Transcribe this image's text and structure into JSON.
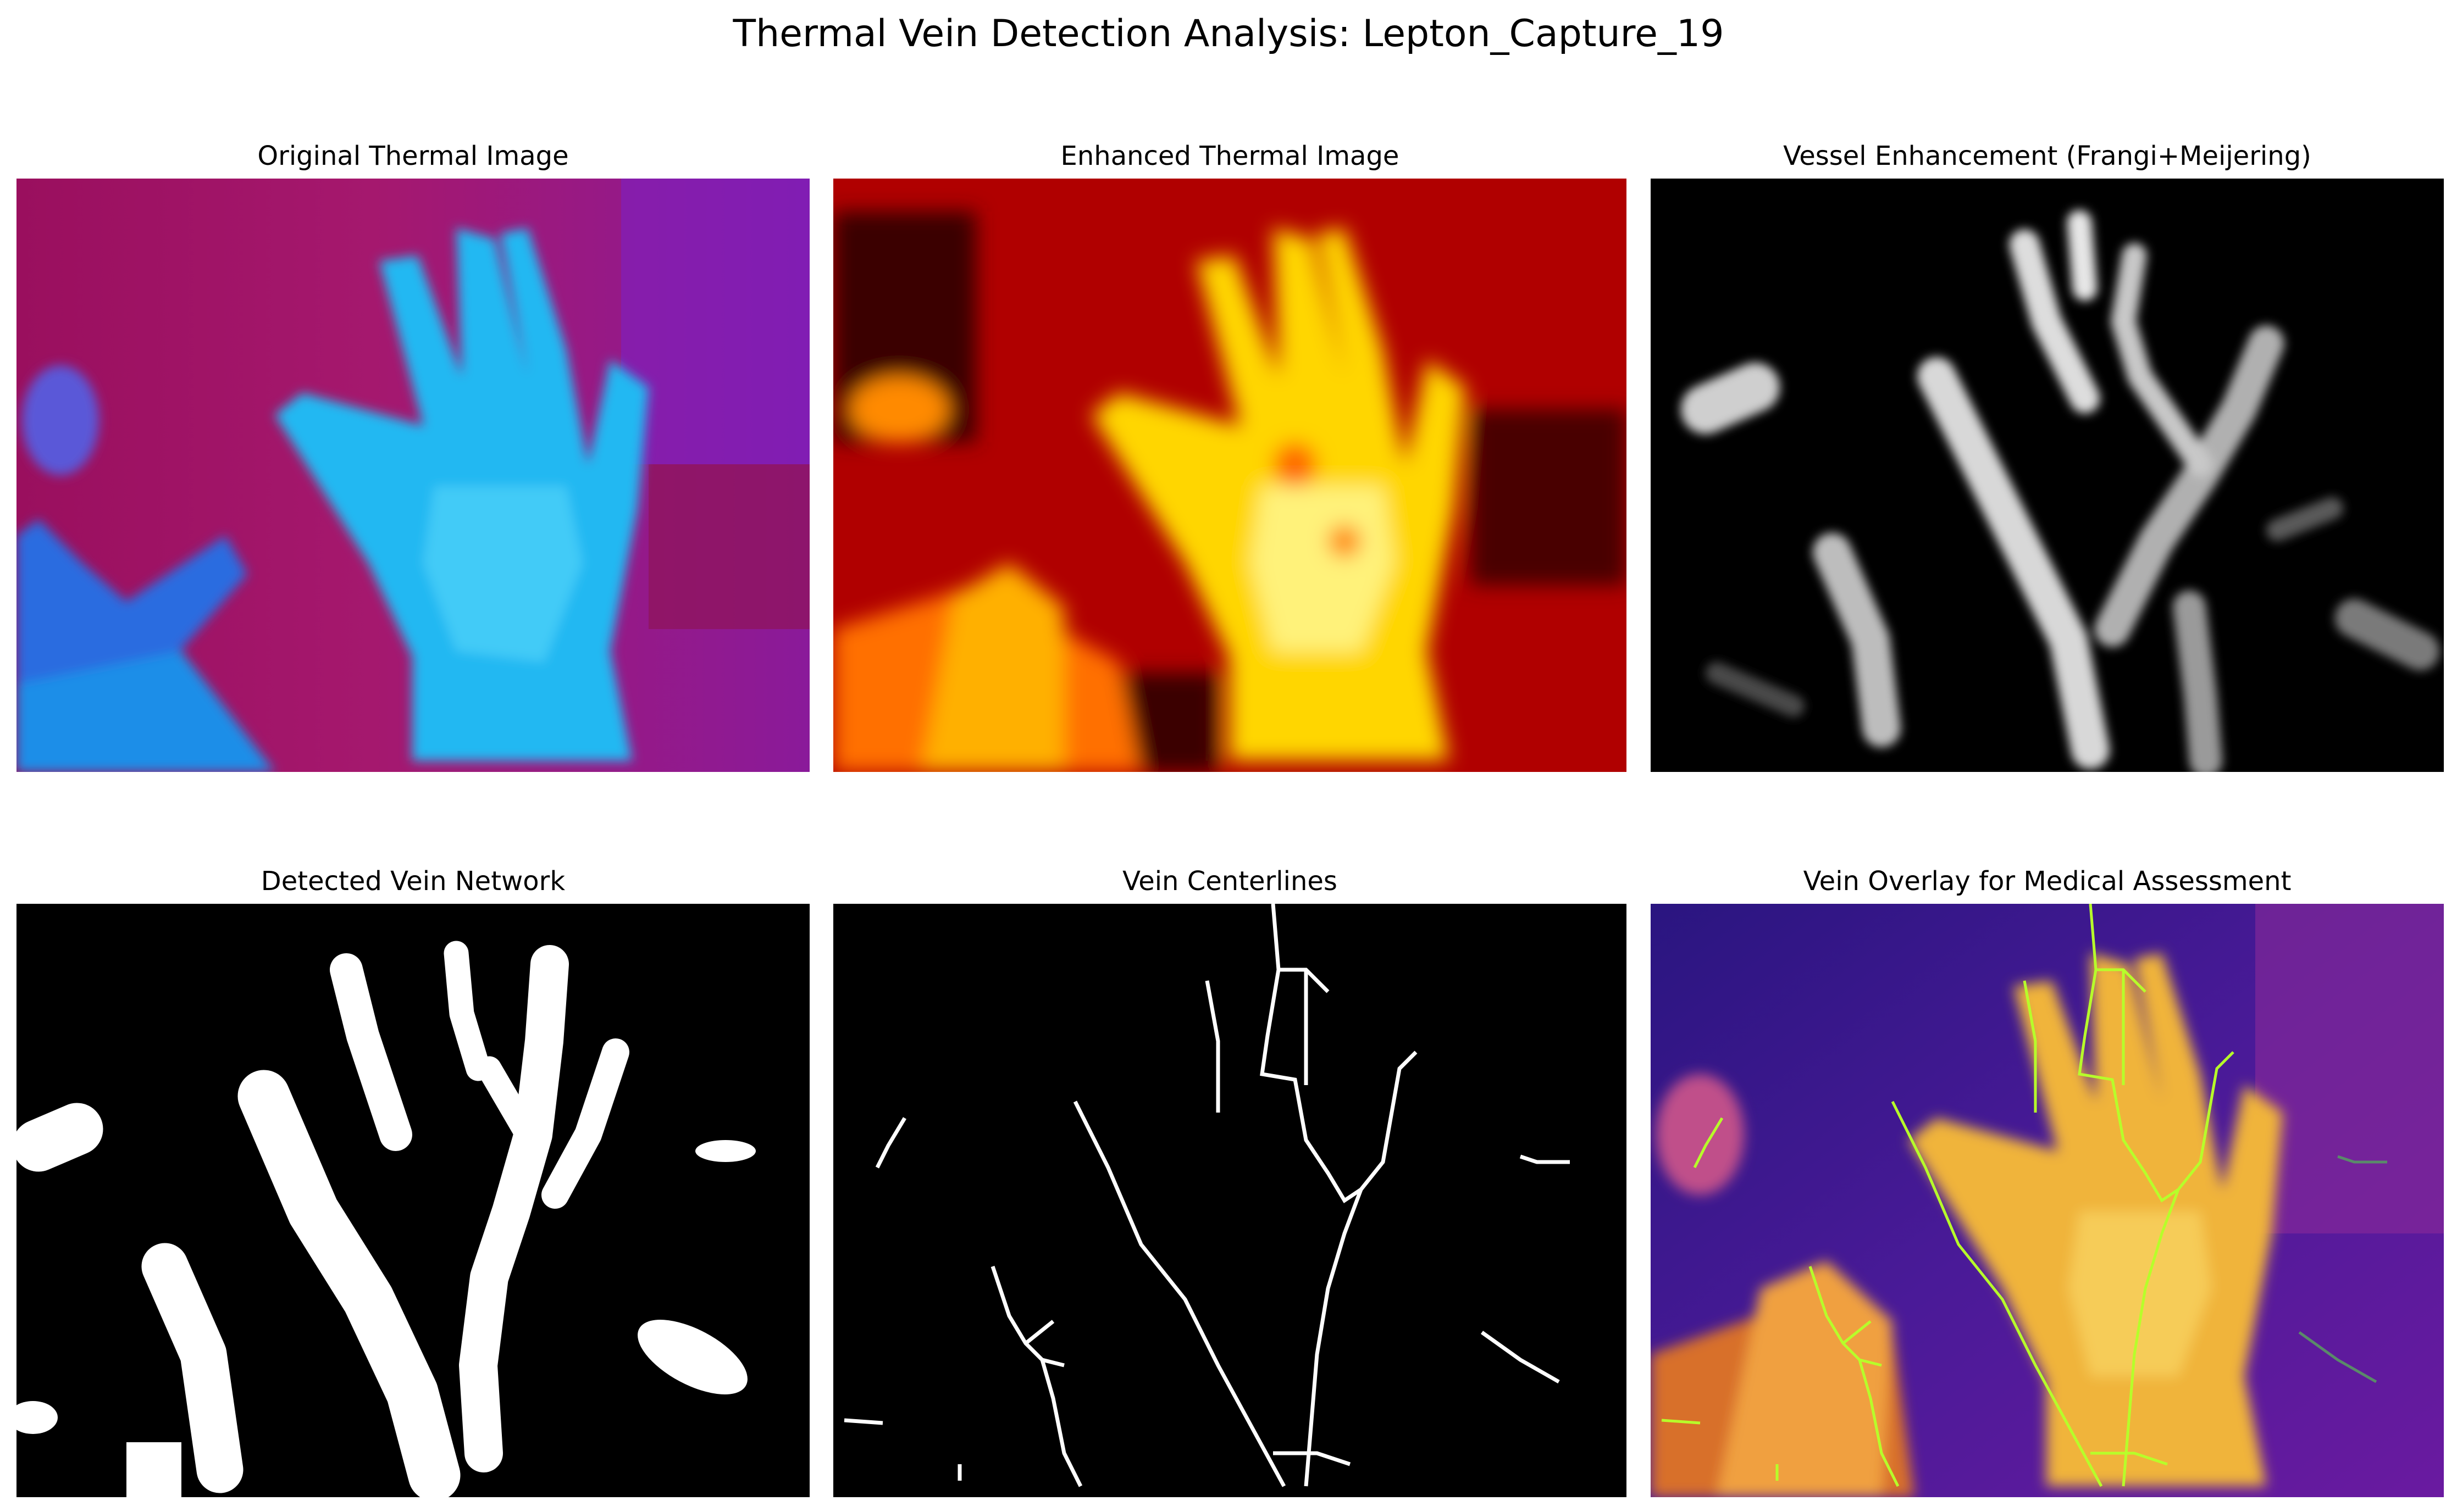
{
  "figure": {
    "title": "Thermal Vein Detection Analysis: Lepton_Capture_19"
  },
  "panels": [
    {
      "title": "Original Thermal Image",
      "colormap": "cool-on-magenta",
      "background": "#a51470",
      "subject": "#19b4f0"
    },
    {
      "title": "Enhanced Thermal Image",
      "colormap": "hot",
      "background": "#b30000",
      "subject": "#ffff60"
    },
    {
      "title": "Vessel Enhancement (Frangi+Meijering)",
      "colormap": "gray",
      "background": "#000000",
      "subject": "#e6e6e6"
    },
    {
      "title": "Detected Vein Network",
      "colormap": "binary",
      "background": "#000000",
      "subject": "#ffffff"
    },
    {
      "title": "Vein Centerlines",
      "colormap": "binary",
      "background": "#000000",
      "subject": "#ffffff"
    },
    {
      "title": "Vein Overlay for Medical Assessment",
      "colormap": "plasma",
      "background": "#3a1f8c",
      "subject": "#f2c14a",
      "overlay_line": "#b7ff2a"
    }
  ]
}
